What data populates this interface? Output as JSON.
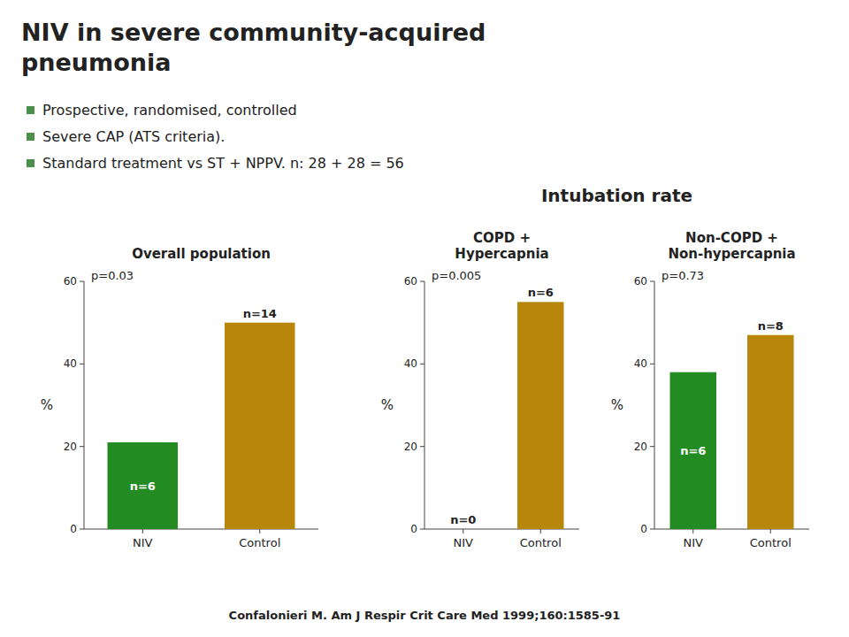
{
  "title_lines": [
    "NIV in severe community-acquired",
    "pneumonia"
  ],
  "bullets": [
    "Prospective, randomised, controlled",
    "Severe CAP (ATS criteria).",
    "Standard treatment vs ST + NPPV. n: 28 + 28 = 56"
  ],
  "group_title": "Intubation rate",
  "citation": "Confalonieri M. Am J Respir Crit Care Med 1999;160:1585-91",
  "chart_data": [
    {
      "type": "bar",
      "title": "Overall population",
      "ylabel": "%",
      "categories": [
        "NIV",
        "Control"
      ],
      "values": [
        21,
        50
      ],
      "colors": [
        "#228B22",
        "#B8860B"
      ],
      "bar_notes": [
        "n=6",
        "n=14"
      ],
      "annotation": "p=0.03",
      "ylim": [
        0,
        60
      ],
      "yticks": [
        0,
        20,
        40,
        60
      ],
      "grid": false
    },
    {
      "type": "bar",
      "title": "COPD +\nHypercapnia",
      "ylabel": "%",
      "categories": [
        "NIV",
        "Control"
      ],
      "values": [
        0,
        55
      ],
      "colors": [
        "#228B22",
        "#B8860B"
      ],
      "bar_notes": [
        "n=0",
        "n=6"
      ],
      "annotation": "p=0.005",
      "ylim": [
        0,
        60
      ],
      "yticks": [
        0,
        20,
        40,
        60
      ],
      "grid": false
    },
    {
      "type": "bar",
      "title": "Non-COPD +\nNon-hypercapnia",
      "ylabel": "%",
      "categories": [
        "NIV",
        "Control"
      ],
      "values": [
        38,
        47
      ],
      "colors": [
        "#228B22",
        "#B8860B"
      ],
      "bar_notes": [
        "n=6",
        "n=8"
      ],
      "annotation": "p=0.73",
      "ylim": [
        0,
        60
      ],
      "yticks": [
        0,
        20,
        40,
        60
      ],
      "grid": false
    }
  ]
}
